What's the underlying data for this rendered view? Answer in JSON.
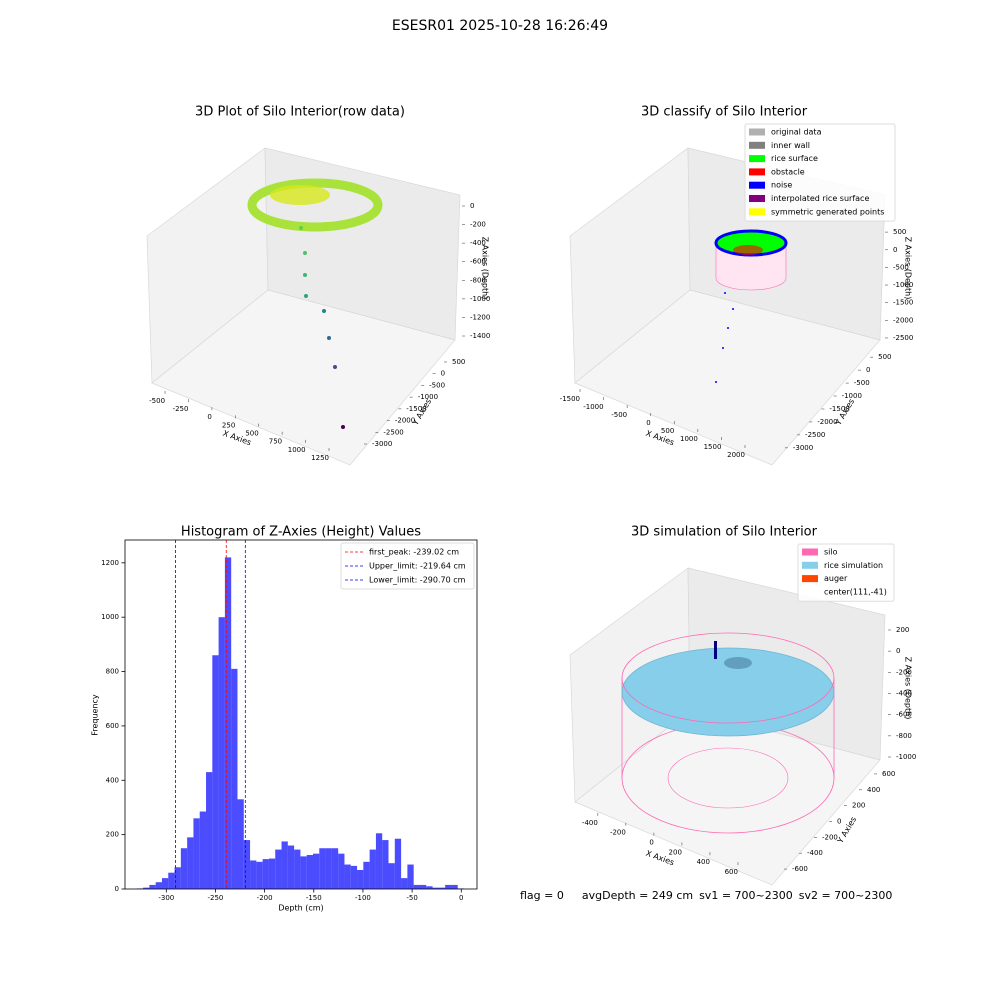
{
  "title": "ESESR01 2025-10-28 16:26:49",
  "chart_data": [
    {
      "type": "scatter3d",
      "title": "3D Plot of Silo Interior(row data)",
      "xlabel": "X Axies",
      "ylabel": "Y Axies",
      "zlabel": "Z Axies (Depth)",
      "xlim": [
        -620,
        1360
      ],
      "xticks": [
        -500,
        -250,
        0,
        250,
        500,
        750,
        1000,
        1250
      ],
      "ylim": [
        -3200,
        700
      ],
      "yticks": [
        -3000,
        -2500,
        -2000,
        -1500,
        -1000,
        -500,
        0,
        500
      ],
      "zlim": [
        -1500,
        100
      ],
      "zticks": [
        -1400,
        -1200,
        -1000,
        -800,
        -600,
        -400,
        -200,
        0
      ]
    },
    {
      "type": "scatter3d",
      "title": "3D classify of Silo Interior",
      "xlabel": "X Axies",
      "ylabel": "Y Axies",
      "zlabel": "Z Axies (Depth)",
      "xlim": [
        -1700,
        2200
      ],
      "xticks": [
        -1500,
        -1000,
        -500,
        0,
        500,
        1000,
        1500,
        2000
      ],
      "ylim": [
        -3200,
        700
      ],
      "yticks": [
        -3000,
        -2500,
        -2000,
        -1500,
        -1000,
        -500,
        0,
        500
      ],
      "zlim": [
        -2700,
        900
      ],
      "zticks": [
        -2500,
        -2000,
        -1500,
        -1000,
        -500,
        0,
        500
      ],
      "legend": [
        {
          "name": "original data",
          "color": "#b0b0b0"
        },
        {
          "name": "inner wall",
          "color": "#808080"
        },
        {
          "name": "rice surface",
          "color": "#00ff00"
        },
        {
          "name": "obstacle",
          "color": "#ff0000"
        },
        {
          "name": "noise",
          "color": "#0000ff"
        },
        {
          "name": "interpolated rice surface",
          "color": "#800080"
        },
        {
          "name": "symmetric generated points",
          "color": "#ffff00"
        }
      ]
    },
    {
      "type": "histogram",
      "title": "Histogram of Z-Axies (Height) Values",
      "xlabel": "Depth (cm)",
      "ylabel": "Frequency",
      "color": "#0000ff",
      "alpha": 0.7,
      "bins": [
        -330,
        -323.6,
        -317.2,
        -310.8,
        -304.4,
        -298,
        -291.6,
        -285.2,
        -278.8,
        -272.4,
        -266,
        -259.6,
        -253.2,
        -246.8,
        -240.4,
        -234,
        -227.6,
        -221.2,
        -214.8,
        -208.4,
        -202,
        -195.6,
        -189.2,
        -182.8,
        -176.4,
        -170,
        -163.6,
        -157.2,
        -150.8,
        -144.4,
        -138,
        -131.6,
        -125.2,
        -118.8,
        -112.4,
        -106,
        -99.6,
        -93.2,
        -86.8,
        -80.4,
        -74,
        -67.6,
        -61.2,
        -54.8,
        -48.4,
        -42,
        -35.6,
        -29.2,
        -22.8,
        -16.4,
        -10,
        -3.6,
        2.8
      ],
      "values": [
        2,
        5,
        15,
        25,
        40,
        60,
        80,
        150,
        190,
        260,
        285,
        430,
        860,
        1000,
        1220,
        810,
        330,
        180,
        105,
        100,
        110,
        112,
        145,
        175,
        160,
        145,
        120,
        125,
        130,
        150,
        150,
        150,
        130,
        90,
        85,
        70,
        100,
        145,
        205,
        180,
        95,
        185,
        40,
        90,
        15,
        15,
        10,
        5,
        5,
        15,
        15,
        2
      ],
      "xlim": [
        -342,
        16
      ],
      "xticks": [
        -300,
        -250,
        -200,
        -150,
        -100,
        -50,
        0
      ],
      "ylim": [
        0,
        1284
      ],
      "yticks": [
        0,
        200,
        400,
        600,
        800,
        1000,
        1200
      ],
      "vlines": [
        {
          "value": -239.02,
          "label": "first_peak: -239.02 cm",
          "color": "#ff0000"
        },
        {
          "value": -219.64,
          "label": "Upper_limit: -219.64 cm",
          "color": "#0000ff"
        },
        {
          "value": -290.7,
          "label": "Lower_limit: -290.70 cm",
          "color": "#0000ff"
        }
      ]
    },
    {
      "type": "scatter3d",
      "title": "3D simulation of Silo Interior",
      "xlabel": "X Axies",
      "ylabel": "Y Axies",
      "zlabel": "Z Axies (Depth)",
      "xlim": [
        -520,
        700
      ],
      "xticks": [
        -400,
        -200,
        0,
        200,
        400,
        600
      ],
      "ylim": [
        -700,
        700
      ],
      "yticks": [
        -600,
        -400,
        -200,
        0,
        200,
        400,
        600
      ],
      "zlim": [
        -1100,
        300
      ],
      "zticks": [
        -1000,
        -800,
        -600,
        -400,
        -200,
        0,
        200
      ],
      "legend": [
        {
          "name": "silo",
          "color": "#ff69b4"
        },
        {
          "name": "rice simulation",
          "color": "#87ceeb"
        },
        {
          "name": "auger",
          "color": "#ff4500"
        },
        {
          "name": "center(111,-41)",
          "color": null
        }
      ]
    }
  ],
  "footer": [
    "flag = 0",
    "avgDepth = 249 cm",
    "sv1 = 700~2300",
    "sv2 = 700~2300"
  ]
}
